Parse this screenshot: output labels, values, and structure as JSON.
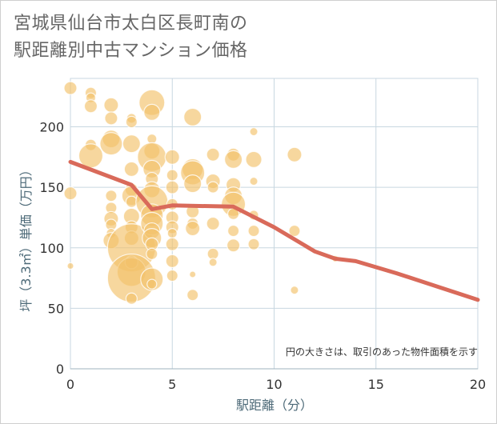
{
  "title_line1": "宮城県仙台市太白区長町南の",
  "title_line2": "駅距離別中古マンション価格",
  "chart_data": {
    "type": "scatter",
    "title": "宮城県仙台市太白区長町南の駅距離別中古マンション価格",
    "xlabel": "駅距離（分）",
    "ylabel": "坪（3.3㎡）単価（万円）",
    "xlim": [
      0,
      20
    ],
    "ylim": [
      0,
      240
    ],
    "xticks": [
      0,
      5,
      10,
      15,
      20
    ],
    "yticks": [
      0,
      50,
      100,
      150,
      200
    ],
    "grid": true,
    "note": "円の大きさは、取引のあった物件面積を示す",
    "colors": {
      "bubble": "#f3c26a",
      "trend": "#d96a5a",
      "grid": "#c8d7e0"
    },
    "bubbles": [
      {
        "x": 0,
        "y": 232,
        "r": 8
      },
      {
        "x": 0,
        "y": 145,
        "r": 8
      },
      {
        "x": 0,
        "y": 85,
        "r": 4
      },
      {
        "x": 1,
        "y": 228,
        "r": 7
      },
      {
        "x": 1,
        "y": 224,
        "r": 6
      },
      {
        "x": 1,
        "y": 217,
        "r": 8
      },
      {
        "x": 1,
        "y": 185,
        "r": 7
      },
      {
        "x": 1,
        "y": 176,
        "r": 15
      },
      {
        "x": 2,
        "y": 218,
        "r": 9
      },
      {
        "x": 2,
        "y": 207,
        "r": 8
      },
      {
        "x": 2,
        "y": 190,
        "r": 11
      },
      {
        "x": 2,
        "y": 186,
        "r": 14
      },
      {
        "x": 2,
        "y": 143,
        "r": 7
      },
      {
        "x": 2,
        "y": 133,
        "r": 7
      },
      {
        "x": 2,
        "y": 124,
        "r": 9
      },
      {
        "x": 2,
        "y": 119,
        "r": 7
      },
      {
        "x": 2,
        "y": 112,
        "r": 6
      },
      {
        "x": 2,
        "y": 106,
        "r": 10
      },
      {
        "x": 3,
        "y": 207,
        "r": 6
      },
      {
        "x": 3,
        "y": 204,
        "r": 7
      },
      {
        "x": 3,
        "y": 186,
        "r": 11
      },
      {
        "x": 3,
        "y": 165,
        "r": 9
      },
      {
        "x": 3,
        "y": 148,
        "r": 8
      },
      {
        "x": 3,
        "y": 143,
        "r": 12
      },
      {
        "x": 3,
        "y": 138,
        "r": 7
      },
      {
        "x": 3,
        "y": 126,
        "r": 10
      },
      {
        "x": 3,
        "y": 117,
        "r": 8
      },
      {
        "x": 3,
        "y": 108,
        "r": 9
      },
      {
        "x": 3,
        "y": 100,
        "r": 30
      },
      {
        "x": 3,
        "y": 88,
        "r": 8
      },
      {
        "x": 3,
        "y": 80,
        "r": 18
      },
      {
        "x": 3,
        "y": 75,
        "r": 30
      },
      {
        "x": 3,
        "y": 58,
        "r": 7
      },
      {
        "x": 4,
        "y": 220,
        "r": 16
      },
      {
        "x": 4,
        "y": 212,
        "r": 10
      },
      {
        "x": 4,
        "y": 190,
        "r": 6
      },
      {
        "x": 4,
        "y": 180,
        "r": 10
      },
      {
        "x": 4,
        "y": 175,
        "r": 18
      },
      {
        "x": 4,
        "y": 165,
        "r": 11
      },
      {
        "x": 4,
        "y": 157,
        "r": 8
      },
      {
        "x": 4,
        "y": 148,
        "r": 10
      },
      {
        "x": 4,
        "y": 138,
        "r": 20
      },
      {
        "x": 4,
        "y": 127,
        "r": 14
      },
      {
        "x": 4,
        "y": 120,
        "r": 14
      },
      {
        "x": 4,
        "y": 114,
        "r": 10
      },
      {
        "x": 4,
        "y": 108,
        "r": 12
      },
      {
        "x": 4,
        "y": 103,
        "r": 8
      },
      {
        "x": 4,
        "y": 95,
        "r": 7
      },
      {
        "x": 4,
        "y": 74,
        "r": 14
      },
      {
        "x": 4,
        "y": 70,
        "r": 6
      },
      {
        "x": 5,
        "y": 175,
        "r": 9
      },
      {
        "x": 5,
        "y": 160,
        "r": 7
      },
      {
        "x": 5,
        "y": 150,
        "r": 8
      },
      {
        "x": 5,
        "y": 136,
        "r": 7
      },
      {
        "x": 5,
        "y": 125,
        "r": 8
      },
      {
        "x": 5,
        "y": 117,
        "r": 8
      },
      {
        "x": 5,
        "y": 112,
        "r": 6
      },
      {
        "x": 5,
        "y": 103,
        "r": 8
      },
      {
        "x": 5,
        "y": 89,
        "r": 8
      },
      {
        "x": 5,
        "y": 77,
        "r": 7
      },
      {
        "x": 6,
        "y": 208,
        "r": 11
      },
      {
        "x": 6,
        "y": 165,
        "r": 13
      },
      {
        "x": 6,
        "y": 162,
        "r": 15
      },
      {
        "x": 6,
        "y": 153,
        "r": 11
      },
      {
        "x": 6,
        "y": 130,
        "r": 8
      },
      {
        "x": 6,
        "y": 120,
        "r": 7
      },
      {
        "x": 6,
        "y": 116,
        "r": 9
      },
      {
        "x": 6,
        "y": 78,
        "r": 4
      },
      {
        "x": 6,
        "y": 61,
        "r": 7
      },
      {
        "x": 7,
        "y": 177,
        "r": 8
      },
      {
        "x": 7,
        "y": 155,
        "r": 9
      },
      {
        "x": 7,
        "y": 150,
        "r": 7
      },
      {
        "x": 7,
        "y": 120,
        "r": 8
      },
      {
        "x": 7,
        "y": 95,
        "r": 7
      },
      {
        "x": 7,
        "y": 88,
        "r": 5
      },
      {
        "x": 8,
        "y": 177,
        "r": 8
      },
      {
        "x": 8,
        "y": 173,
        "r": 11
      },
      {
        "x": 8,
        "y": 152,
        "r": 9
      },
      {
        "x": 8,
        "y": 143,
        "r": 11
      },
      {
        "x": 8,
        "y": 136,
        "r": 15
      },
      {
        "x": 8,
        "y": 128,
        "r": 7
      },
      {
        "x": 8,
        "y": 114,
        "r": 7
      },
      {
        "x": 8,
        "y": 102,
        "r": 8
      },
      {
        "x": 9,
        "y": 196,
        "r": 5
      },
      {
        "x": 9,
        "y": 173,
        "r": 10
      },
      {
        "x": 9,
        "y": 155,
        "r": 5
      },
      {
        "x": 9,
        "y": 127,
        "r": 6
      },
      {
        "x": 9,
        "y": 114,
        "r": 7
      },
      {
        "x": 9,
        "y": 103,
        "r": 7
      },
      {
        "x": 11,
        "y": 177,
        "r": 9
      },
      {
        "x": 11,
        "y": 114,
        "r": 7
      },
      {
        "x": 11,
        "y": 65,
        "r": 5
      },
      {
        "x": 13,
        "y": 91,
        "r": 4
      }
    ],
    "trend": [
      {
        "x": 0,
        "y": 171
      },
      {
        "x": 3,
        "y": 152
      },
      {
        "x": 4,
        "y": 132
      },
      {
        "x": 5,
        "y": 135
      },
      {
        "x": 8,
        "y": 134
      },
      {
        "x": 10,
        "y": 117
      },
      {
        "x": 12,
        "y": 97
      },
      {
        "x": 13,
        "y": 91
      },
      {
        "x": 14,
        "y": 89
      },
      {
        "x": 16,
        "y": 79
      },
      {
        "x": 18,
        "y": 68
      },
      {
        "x": 20,
        "y": 57
      }
    ]
  }
}
